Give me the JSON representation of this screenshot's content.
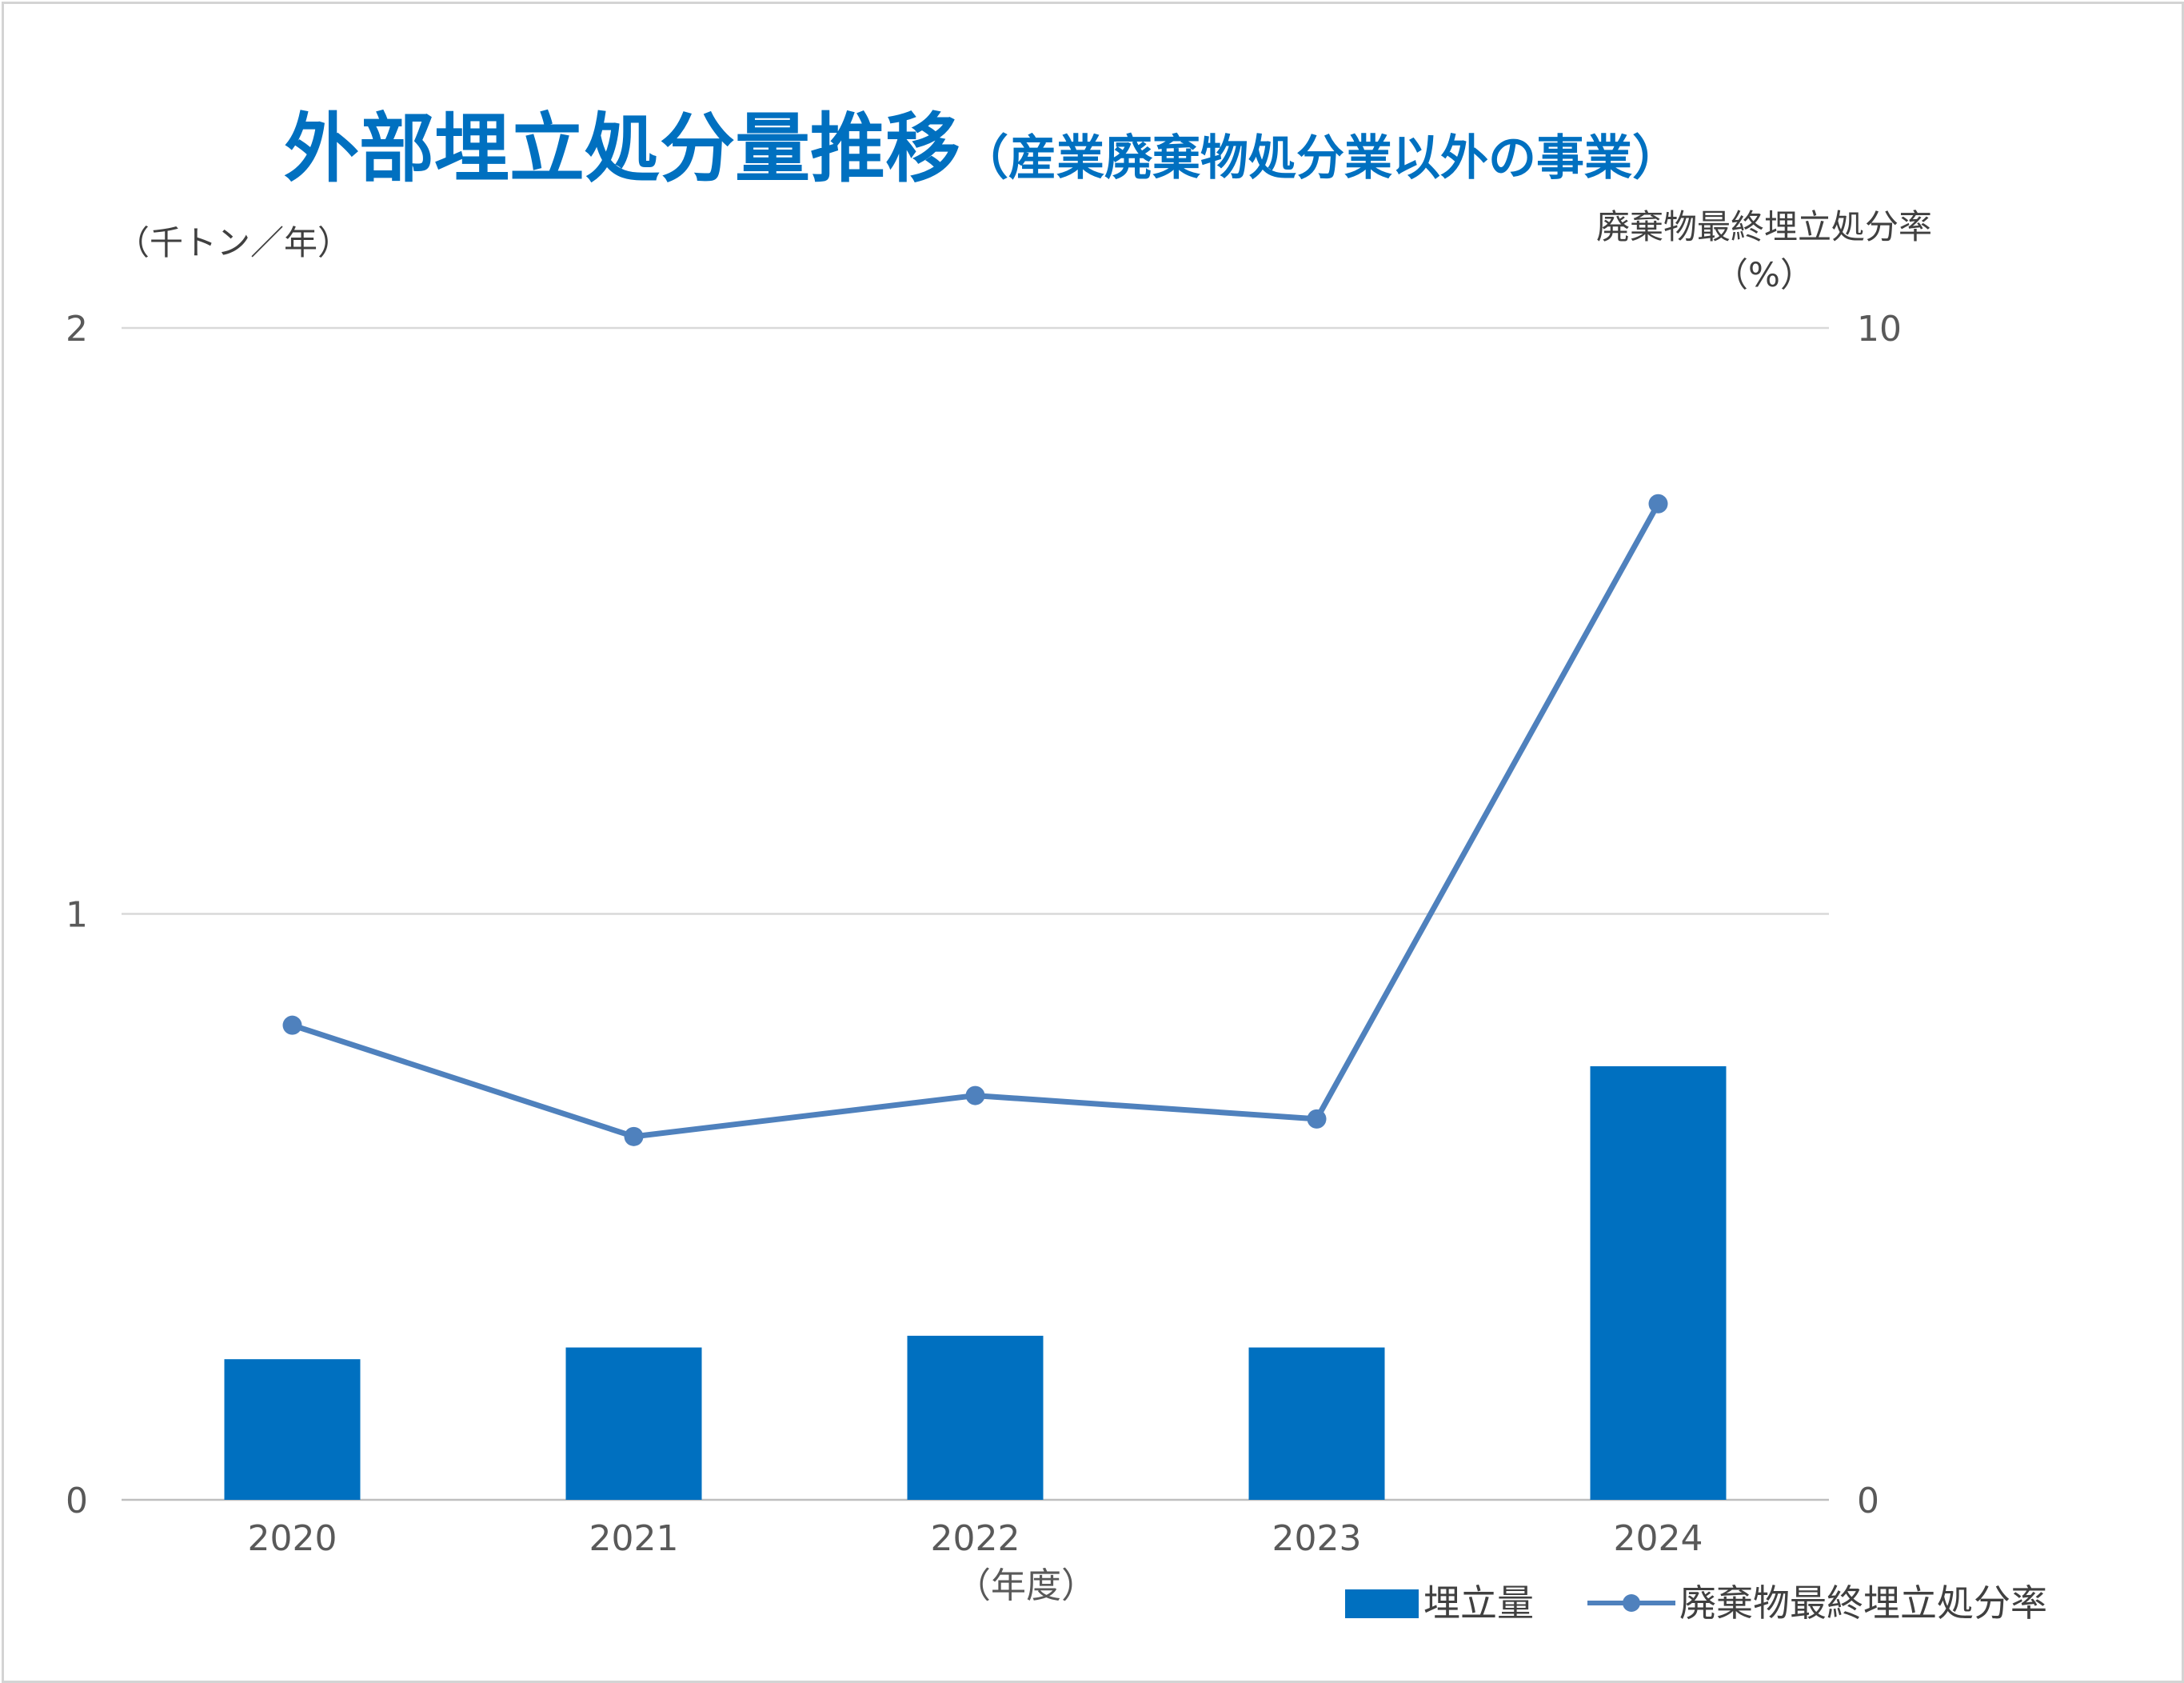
{
  "colors": {
    "bar": "#0070c0",
    "line": "#4f81bd",
    "grid": "#d9d9d9",
    "title": "#0070c0",
    "text": "#595959"
  },
  "chart_data": {
    "type": "bar",
    "title": "外部埋立処分量推移",
    "subtitle": "（産業廃棄物処分業以外の事業）",
    "categories": [
      "2020",
      "2021",
      "2022",
      "2023",
      "2024"
    ],
    "xlabel": "（年度）",
    "ylabel_left": "（千トン／年）",
    "ylabel_right": "廃棄物最終埋立処分率",
    "ylabel_right_unit": "（%）",
    "ylim_left": [
      0,
      2
    ],
    "ylim_right": [
      0,
      10
    ],
    "yticks_left": [
      "0",
      "1",
      "2"
    ],
    "yticks_right": [
      "0",
      "10"
    ],
    "grid": true,
    "legend_position": "bottom-right",
    "series": [
      {
        "name": "埋立量",
        "type": "bar",
        "axis": "left",
        "values": [
          0.24,
          0.26,
          0.28,
          0.26,
          0.74
        ]
      },
      {
        "name": "廃棄物最終埋立処分率",
        "type": "line",
        "axis": "right",
        "values": [
          4.05,
          3.1,
          3.45,
          3.25,
          8.5
        ]
      }
    ]
  }
}
